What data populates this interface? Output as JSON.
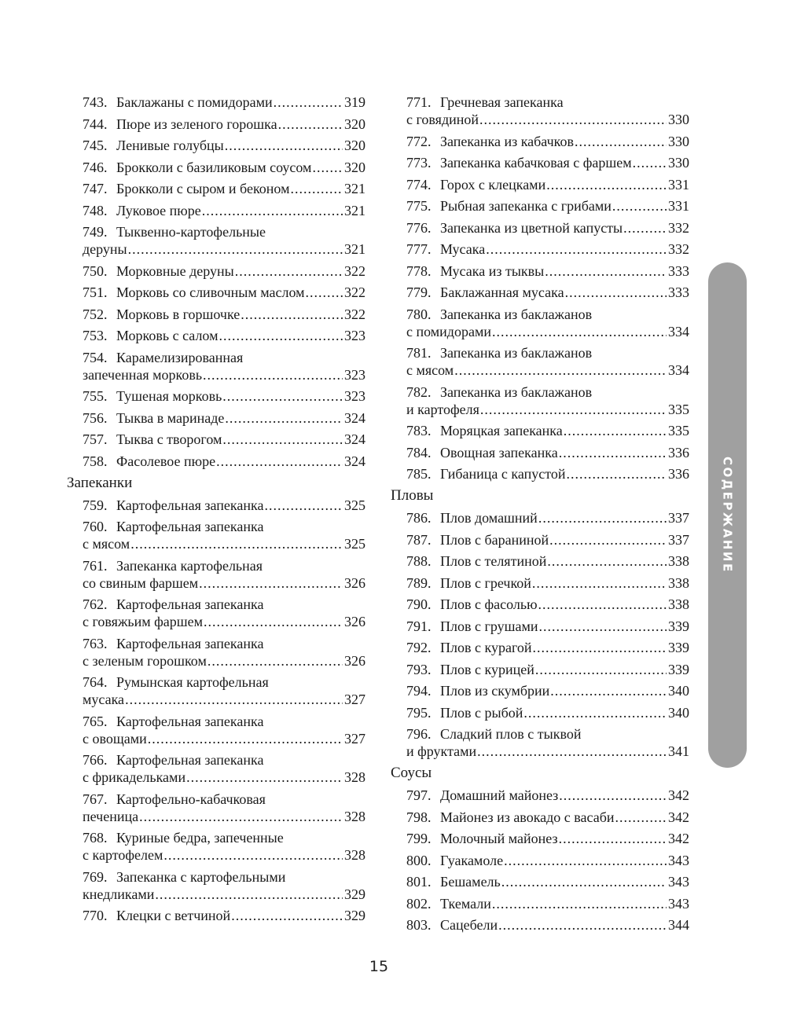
{
  "side_tab": {
    "label": "СОДЕРЖАНИЕ",
    "color": "#a0a0a0"
  },
  "page_number": "15",
  "columns": [
    {
      "blocks": [
        {
          "title": null,
          "entries": [
            {
              "num": "743.",
              "lines": [
                "Баклажаны с помидорами"
              ],
              "page": "319"
            },
            {
              "num": "744.",
              "lines": [
                "Пюре из зеленого горошка"
              ],
              "page": "320"
            },
            {
              "num": "745.",
              "lines": [
                "Ленивые голубцы"
              ],
              "page": "320"
            },
            {
              "num": "746.",
              "lines": [
                "Брокколи с базиликовым соусом"
              ],
              "page": "320"
            },
            {
              "num": "747.",
              "lines": [
                "Брокколи с сыром и беконом"
              ],
              "page": "321"
            },
            {
              "num": "748.",
              "lines": [
                "Луковое пюре"
              ],
              "page": "321"
            },
            {
              "num": "749.",
              "lines": [
                "Тыквенно-картофельные",
                "деруны"
              ],
              "page": "321"
            },
            {
              "num": "750.",
              "lines": [
                "Морковные деруны"
              ],
              "page": "322"
            },
            {
              "num": "751.",
              "lines": [
                "Морковь со сливочным маслом"
              ],
              "page": "322"
            },
            {
              "num": "752.",
              "lines": [
                "Морковь в горшочке"
              ],
              "page": "322"
            },
            {
              "num": "753.",
              "lines": [
                "Морковь с салом"
              ],
              "page": "323"
            },
            {
              "num": "754.",
              "lines": [
                "Карамелизированная",
                "запеченная морковь"
              ],
              "page": "323"
            },
            {
              "num": "755.",
              "lines": [
                "Тушеная морковь"
              ],
              "page": "323"
            },
            {
              "num": "756.",
              "lines": [
                "Тыква в маринаде"
              ],
              "page": "324"
            },
            {
              "num": "757.",
              "lines": [
                "Тыква с творогом"
              ],
              "page": "324"
            },
            {
              "num": "758.",
              "lines": [
                "Фасолевое пюре"
              ],
              "page": "324"
            }
          ]
        },
        {
          "title": "Запеканки",
          "entries": [
            {
              "num": "759.",
              "lines": [
                "Картофельная запеканка"
              ],
              "page": "325"
            },
            {
              "num": "760.",
              "lines": [
                "Картофельная запеканка",
                "с мясом"
              ],
              "page": "325"
            },
            {
              "num": "761.",
              "lines": [
                "Запеканка картофельная",
                "со свиным фаршем"
              ],
              "page": "326"
            },
            {
              "num": "762.",
              "lines": [
                "Картофельная запеканка",
                "с говяжьим фаршем"
              ],
              "page": "326"
            },
            {
              "num": "763.",
              "lines": [
                "Картофельная запеканка",
                "с зеленым горошком"
              ],
              "page": "326"
            },
            {
              "num": "764.",
              "lines": [
                "Румынская картофельная",
                "мусака"
              ],
              "page": "327"
            },
            {
              "num": "765.",
              "lines": [
                "Картофельная запеканка",
                "с овощами"
              ],
              "page": "327"
            },
            {
              "num": "766.",
              "lines": [
                "Картофельная запеканка",
                "с фрикадельками"
              ],
              "page": "328"
            },
            {
              "num": "767.",
              "lines": [
                "Картофельно-кабачковая",
                "печеница"
              ],
              "page": "328"
            },
            {
              "num": "768.",
              "lines": [
                "Куриные бедра, запеченные",
                "с картофелем"
              ],
              "page": "328"
            },
            {
              "num": "769.",
              "lines": [
                "Запеканка с картофельными",
                "кнедликами"
              ],
              "page": "329"
            },
            {
              "num": "770.",
              "lines": [
                "Клецки с ветчиной"
              ],
              "page": "329"
            }
          ]
        }
      ]
    },
    {
      "blocks": [
        {
          "title": null,
          "entries": [
            {
              "num": "771.",
              "lines": [
                "Гречневая запеканка",
                "с говядиной"
              ],
              "page": "330"
            },
            {
              "num": "772.",
              "lines": [
                "Запеканка из кабачков"
              ],
              "page": "330"
            },
            {
              "num": "773.",
              "lines": [
                "Запеканка кабачковая с фаршем"
              ],
              "page": "330"
            },
            {
              "num": "774.",
              "lines": [
                "Горох с клецками"
              ],
              "page": "331"
            },
            {
              "num": "775.",
              "lines": [
                "Рыбная запеканка с грибами"
              ],
              "page": "331"
            },
            {
              "num": "776.",
              "lines": [
                "Запеканка из цветной капусты"
              ],
              "page": "332"
            },
            {
              "num": "777.",
              "lines": [
                "Мусака"
              ],
              "page": "332"
            },
            {
              "num": "778.",
              "lines": [
                "Мусака из тыквы"
              ],
              "page": "333"
            },
            {
              "num": "779.",
              "lines": [
                "Баклажанная мусака"
              ],
              "page": "333"
            },
            {
              "num": "780.",
              "lines": [
                "Запеканка из баклажанов",
                "с помидорами"
              ],
              "page": "334"
            },
            {
              "num": "781.",
              "lines": [
                "Запеканка из баклажанов",
                "с мясом"
              ],
              "page": "334"
            },
            {
              "num": "782.",
              "lines": [
                "Запеканка из баклажанов",
                "и картофеля"
              ],
              "page": "335"
            },
            {
              "num": "783.",
              "lines": [
                "Моряцкая запеканка"
              ],
              "page": "335"
            },
            {
              "num": "784.",
              "lines": [
                "Овощная запеканка"
              ],
              "page": "336"
            },
            {
              "num": "785.",
              "lines": [
                "Гибаница с капустой"
              ],
              "page": "336"
            }
          ]
        },
        {
          "title": "Пловы",
          "entries": [
            {
              "num": "786.",
              "lines": [
                "Плов домашний"
              ],
              "page": "337"
            },
            {
              "num": "787.",
              "lines": [
                "Плов с бараниной"
              ],
              "page": "337"
            },
            {
              "num": "788.",
              "lines": [
                "Плов с телятиной"
              ],
              "page": "338"
            },
            {
              "num": "789.",
              "lines": [
                "Плов с гречкой"
              ],
              "page": "338"
            },
            {
              "num": "790.",
              "lines": [
                "Плов с фасолью"
              ],
              "page": "338"
            },
            {
              "num": "791.",
              "lines": [
                "Плов с грушами"
              ],
              "page": "339"
            },
            {
              "num": "792.",
              "lines": [
                "Плов с курагой"
              ],
              "page": "339"
            },
            {
              "num": "793.",
              "lines": [
                "Плов с курицей"
              ],
              "page": "339"
            },
            {
              "num": "794.",
              "lines": [
                "Плов из скумбрии"
              ],
              "page": "340"
            },
            {
              "num": "795.",
              "lines": [
                "Плов с рыбой"
              ],
              "page": "340"
            },
            {
              "num": "796.",
              "lines": [
                "Сладкий плов с тыквой",
                "и фруктами"
              ],
              "page": "341"
            }
          ]
        },
        {
          "title": "Соусы",
          "entries": [
            {
              "num": "797.",
              "lines": [
                "Домашний майонез"
              ],
              "page": "342"
            },
            {
              "num": "798.",
              "lines": [
                "Майонез из авокадо с васаби"
              ],
              "page": "342"
            },
            {
              "num": "799.",
              "lines": [
                "Молочный майонез"
              ],
              "page": "342"
            },
            {
              "num": "800.",
              "lines": [
                "Гуакамоле"
              ],
              "page": "343"
            },
            {
              "num": "801.",
              "lines": [
                "Бешамель"
              ],
              "page": "343"
            },
            {
              "num": "802.",
              "lines": [
                "Ткемали"
              ],
              "page": "343"
            },
            {
              "num": "803.",
              "lines": [
                "Сацебели"
              ],
              "page": "344"
            }
          ]
        }
      ]
    }
  ]
}
